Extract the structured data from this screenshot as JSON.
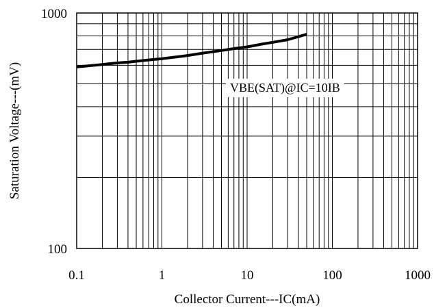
{
  "chart_data": {
    "type": "line",
    "xscale": "log",
    "yscale": "log",
    "xlim": [
      0.1,
      1000
    ],
    "ylim": [
      100,
      1000
    ],
    "grid": true,
    "xlabel": "Collector Current---IC(mA)",
    "ylabel": "Saturation Voltage---(mV)",
    "x_ticks": [
      "0.1",
      "1",
      "10",
      "100",
      "1000"
    ],
    "y_ticks": [
      "100",
      "1000"
    ],
    "annotation": "VBE(SAT)@IC=10IB",
    "series": [
      {
        "x": [
          0.1,
          0.2,
          0.3,
          0.4,
          0.5,
          0.7,
          1,
          1.5,
          2,
          3,
          5,
          7,
          10,
          15,
          20,
          30,
          50
        ],
        "y": [
          590,
          604,
          614,
          618,
          624,
          632,
          640,
          651,
          660,
          675,
          693,
          706,
          718,
          738,
          751,
          770,
          812
        ]
      }
    ]
  }
}
